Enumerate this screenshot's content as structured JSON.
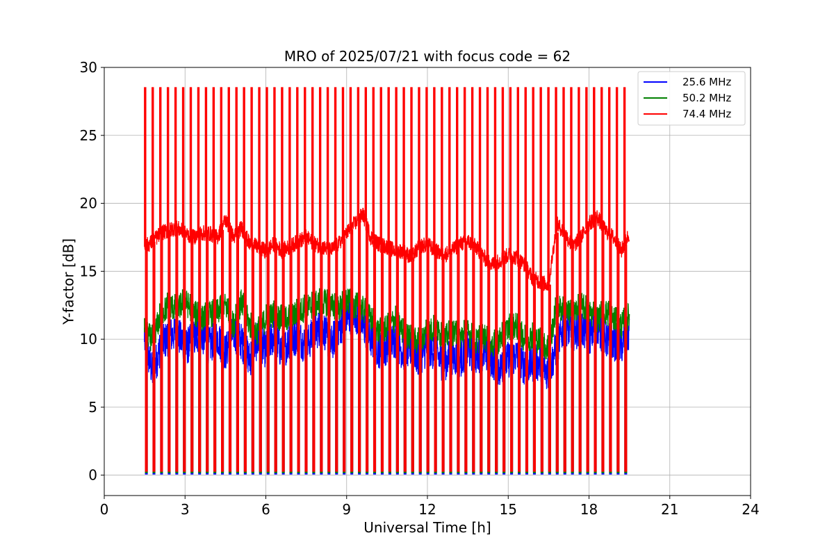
{
  "chart_data": {
    "type": "line",
    "title": "MRO of 2025/07/21 with focus code = 62",
    "xlabel": "Universal Time [h]",
    "ylabel": "Y-factor [dB]",
    "xlim": [
      0,
      24
    ],
    "ylim": [
      -1.5,
      30
    ],
    "xticks": [
      0,
      3,
      6,
      9,
      12,
      15,
      18,
      21,
      24
    ],
    "yticks": [
      0,
      5,
      10,
      15,
      20,
      25,
      30
    ],
    "grid": true,
    "legend_position": "top-right",
    "calibration_spikes": {
      "description_free_params": true,
      "start_h": 1.5,
      "end_h": 19.3,
      "count": 64,
      "peak_db": 28.5,
      "trough_db": 0.1
    },
    "series": [
      {
        "name": "25.6 MHz",
        "color": "#0000ff",
        "x": [
          1.5,
          1.8,
          2.1,
          2.4,
          2.7,
          3.0,
          3.3,
          3.6,
          3.9,
          4.2,
          4.5,
          4.8,
          5.1,
          5.4,
          5.7,
          6.0,
          6.3,
          6.6,
          6.9,
          7.2,
          7.5,
          7.8,
          8.1,
          8.4,
          8.7,
          9.0,
          9.3,
          9.6,
          9.9,
          10.2,
          10.5,
          10.8,
          11.1,
          11.4,
          11.7,
          12.0,
          12.3,
          12.6,
          12.9,
          13.2,
          13.5,
          13.8,
          14.1,
          14.4,
          14.7,
          15.0,
          15.3,
          15.6,
          15.9,
          16.2,
          16.5,
          16.8,
          17.1,
          17.4,
          17.7,
          18.0,
          18.3,
          18.6,
          18.9,
          19.2,
          19.5
        ],
        "values": [
          9.8,
          7.5,
          9.5,
          10.2,
          10.5,
          9.3,
          10.0,
          10.4,
          9.5,
          10.2,
          9.0,
          10.5,
          9.8,
          8.5,
          10.0,
          9.2,
          10.3,
          9.0,
          10.0,
          10.2,
          9.5,
          10.5,
          11.0,
          9.5,
          10.8,
          11.5,
          12.0,
          11.0,
          10.0,
          9.2,
          9.5,
          10.0,
          9.0,
          9.3,
          8.5,
          9.5,
          9.0,
          8.2,
          8.8,
          8.5,
          9.2,
          8.8,
          9.0,
          8.5,
          7.8,
          8.5,
          8.8,
          8.0,
          8.2,
          8.3,
          7.5,
          9.5,
          11.0,
          10.5,
          10.8,
          10.2,
          11.0,
          10.0,
          9.8,
          9.5,
          10.5
        ]
      },
      {
        "name": "50.2 MHz",
        "color": "#008000",
        "x": [
          1.5,
          1.8,
          2.1,
          2.4,
          2.7,
          3.0,
          3.3,
          3.6,
          3.9,
          4.2,
          4.5,
          4.8,
          5.1,
          5.4,
          5.7,
          6.0,
          6.3,
          6.6,
          6.9,
          7.2,
          7.5,
          7.8,
          8.1,
          8.4,
          8.7,
          9.0,
          9.3,
          9.6,
          9.9,
          10.2,
          10.5,
          10.8,
          11.1,
          11.4,
          11.7,
          12.0,
          12.3,
          12.6,
          12.9,
          13.2,
          13.5,
          13.8,
          14.1,
          14.4,
          14.7,
          15.0,
          15.3,
          15.6,
          15.9,
          16.2,
          16.5,
          16.8,
          17.1,
          17.4,
          17.7,
          18.0,
          18.3,
          18.6,
          18.9,
          19.2,
          19.5
        ],
        "values": [
          10.5,
          10.0,
          11.8,
          12.5,
          12.2,
          12.8,
          12.0,
          11.5,
          11.8,
          12.0,
          12.5,
          11.0,
          12.8,
          11.0,
          10.5,
          11.5,
          11.8,
          11.5,
          11.5,
          12.0,
          12.3,
          12.5,
          12.8,
          12.5,
          12.2,
          12.8,
          12.5,
          12.2,
          11.5,
          10.5,
          10.8,
          11.5,
          10.5,
          10.0,
          9.8,
          10.5,
          10.8,
          10.0,
          10.5,
          10.2,
          10.5,
          9.8,
          10.2,
          9.5,
          10.0,
          10.8,
          11.0,
          10.0,
          10.2,
          9.8,
          9.2,
          12.5,
          12.0,
          11.8,
          12.5,
          12.0,
          11.5,
          12.0,
          11.5,
          11.0,
          11.8
        ]
      },
      {
        "name": "74.4 MHz",
        "color": "#ff0000",
        "x": [
          1.5,
          1.8,
          2.1,
          2.4,
          2.7,
          3.0,
          3.3,
          3.6,
          3.9,
          4.2,
          4.5,
          4.8,
          5.1,
          5.4,
          5.7,
          6.0,
          6.3,
          6.6,
          6.9,
          7.2,
          7.5,
          7.8,
          8.1,
          8.4,
          8.7,
          9.0,
          9.3,
          9.6,
          9.9,
          10.2,
          10.5,
          10.8,
          11.1,
          11.4,
          11.7,
          12.0,
          12.3,
          12.6,
          12.9,
          13.2,
          13.5,
          13.8,
          14.1,
          14.4,
          14.7,
          15.0,
          15.3,
          15.6,
          15.9,
          16.2,
          16.5,
          16.8,
          17.1,
          17.4,
          17.7,
          18.0,
          18.3,
          18.6,
          18.9,
          19.2,
          19.5
        ],
        "values": [
          16.8,
          17.2,
          17.8,
          18.0,
          18.2,
          17.8,
          17.5,
          17.8,
          17.8,
          17.5,
          18.8,
          17.5,
          18.2,
          17.0,
          16.8,
          16.5,
          17.0,
          16.5,
          16.8,
          17.2,
          17.5,
          17.0,
          16.8,
          16.5,
          17.0,
          17.8,
          18.5,
          19.2,
          17.5,
          17.0,
          16.8,
          16.5,
          16.5,
          16.0,
          16.8,
          17.0,
          16.5,
          16.2,
          16.5,
          17.0,
          17.2,
          16.8,
          16.0,
          15.5,
          15.8,
          16.2,
          16.0,
          15.5,
          14.5,
          14.2,
          14.0,
          18.5,
          17.8,
          16.8,
          17.5,
          18.5,
          19.0,
          18.0,
          17.5,
          16.5,
          17.8
        ]
      }
    ]
  }
}
